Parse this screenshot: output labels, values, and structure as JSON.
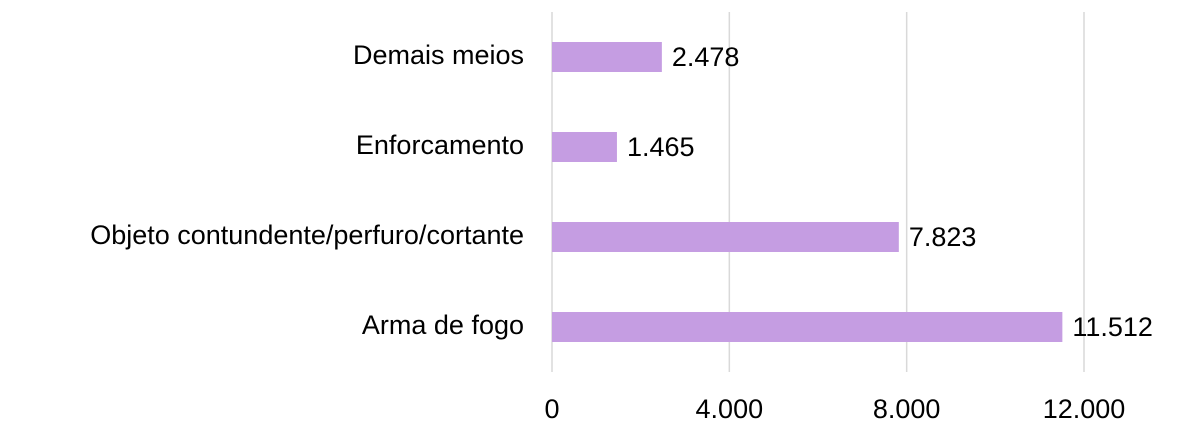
{
  "chart_data": {
    "type": "bar",
    "orientation": "horizontal",
    "categories": [
      "Demais meios",
      "Enforcamento",
      "Objeto contundente/perfuro/cortante",
      "Arma de fogo"
    ],
    "values": [
      2478,
      1465,
      7823,
      11512
    ],
    "value_labels": [
      "2.478",
      "1.465",
      "7.823",
      "11.512"
    ],
    "color": "#c59de2",
    "xlim": [
      0,
      12000
    ],
    "xticks": [
      0,
      {
        "value": 4000,
        "label": "4.000"
      },
      {
        "value": 8000,
        "label": "8.000"
      },
      {
        "value": 12000,
        "label": "12.000"
      }
    ],
    "grid": true
  }
}
